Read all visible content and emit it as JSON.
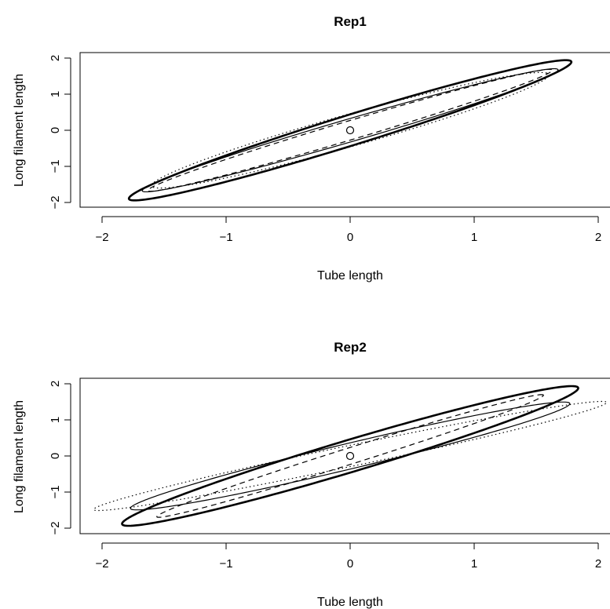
{
  "chart_data": [
    {
      "type": "scatter",
      "title": "Rep1",
      "xlabel": "Tube length",
      "ylabel": "Long filament length",
      "xlim": [
        -2.2,
        2.2
      ],
      "ylim": [
        -2.15,
        2.15
      ],
      "xticks": [
        -2,
        -1,
        0,
        1,
        2
      ],
      "yticks": [
        -2,
        -1,
        0,
        1,
        2
      ],
      "xtick_labels": [
        "−2",
        "−1",
        "0",
        "1",
        "2"
      ],
      "ytick_labels": [
        "−2",
        "−1",
        "0",
        "1",
        "2"
      ],
      "grid": false,
      "points": [
        {
          "x": 0,
          "y": 0,
          "marker": "open-circle"
        }
      ],
      "ellipses": [
        {
          "line": "thick-solid",
          "a": 2.62,
          "b": 0.3,
          "angle_deg": 47.5
        },
        {
          "line": "thin-solid",
          "a": 2.38,
          "b": 0.23,
          "angle_deg": 45.5
        },
        {
          "line": "dashed",
          "a": 2.34,
          "b": 0.19,
          "angle_deg": 46.0
        },
        {
          "line": "dotted",
          "a": 2.24,
          "b": 0.33,
          "angle_deg": 45.0
        }
      ]
    },
    {
      "type": "scatter",
      "title": "Rep2",
      "xlabel": "Tube length",
      "ylabel": "Long filament length",
      "xlim": [
        -2.2,
        2.2
      ],
      "ylim": [
        -2.15,
        2.15
      ],
      "xticks": [
        -2,
        -1,
        0,
        1,
        2
      ],
      "yticks": [
        -2,
        -1,
        0,
        1,
        2
      ],
      "xtick_labels": [
        "−2",
        "−1",
        "0",
        "1",
        "2"
      ],
      "ytick_labels": [
        "−2",
        "−1",
        "0",
        "1",
        "2"
      ],
      "grid": false,
      "points": [
        {
          "x": 0,
          "y": 0,
          "marker": "open-circle"
        }
      ],
      "ellipses": [
        {
          "line": "thick-solid",
          "a": 2.65,
          "b": 0.32,
          "angle_deg": 46.5
        },
        {
          "line": "thin-solid",
          "a": 2.3,
          "b": 0.28,
          "angle_deg": 40.0
        },
        {
          "line": "dashed",
          "a": 2.3,
          "b": 0.16,
          "angle_deg": 47.5
        },
        {
          "line": "dotted",
          "a": 2.55,
          "b": 0.24,
          "angle_deg": 36.0
        }
      ]
    }
  ]
}
